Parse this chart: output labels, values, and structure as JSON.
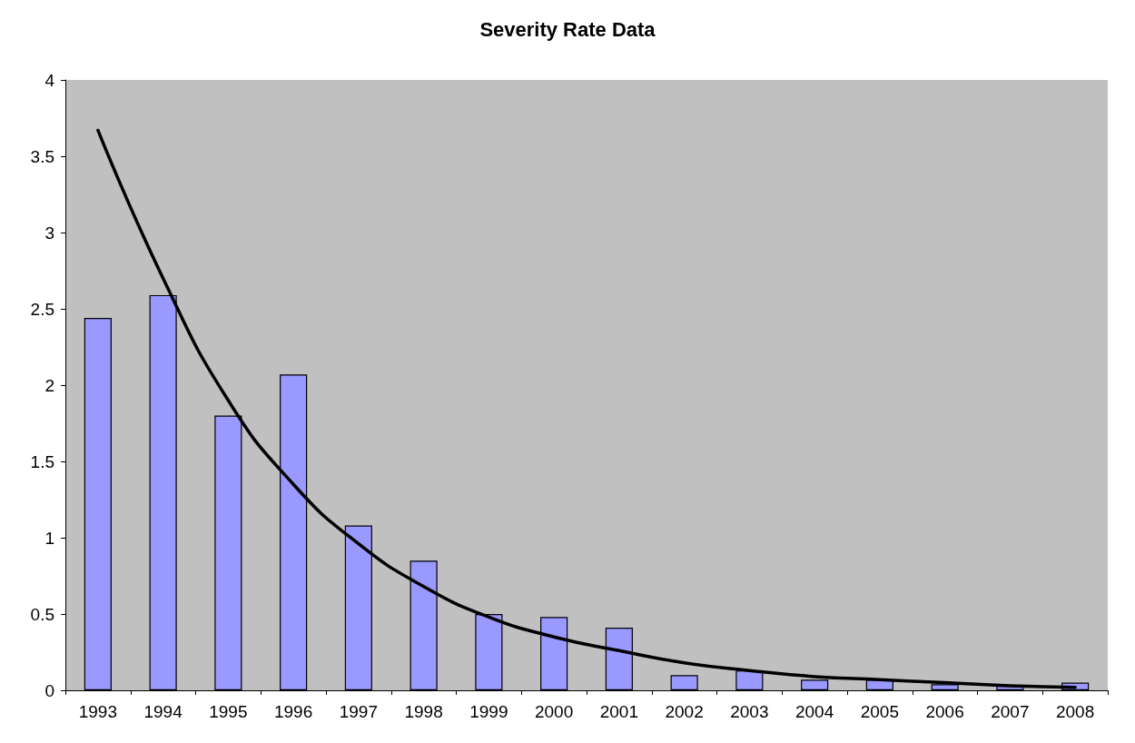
{
  "chart_data": {
    "type": "bar",
    "title": "Severity Rate Data",
    "categories": [
      "1993",
      "1994",
      "1995",
      "1996",
      "1997",
      "1998",
      "1999",
      "2000",
      "2001",
      "2002",
      "2003",
      "2004",
      "2005",
      "2006",
      "2007",
      "2008"
    ],
    "series": [
      {
        "color": "#9999ff",
        "values": [
          2.44,
          2.59,
          1.8,
          2.07,
          1.08,
          0.85,
          0.5,
          0.48,
          0.41,
          0.1,
          0.13,
          0.07,
          0.07,
          0.04,
          0.03,
          0.05
        ]
      },
      {
        "type": "line",
        "color": "#000000",
        "values": [
          3.67,
          2.7,
          1.9,
          1.35,
          0.96,
          0.68,
          0.48,
          0.35,
          0.26,
          0.18,
          0.13,
          0.09,
          0.07,
          0.05,
          0.03,
          0.02
        ]
      }
    ],
    "ylim": [
      0,
      4
    ],
    "yticks": [
      0,
      0.5,
      1,
      1.5,
      2,
      2.5,
      3,
      3.5,
      4
    ],
    "grid": false,
    "marker": "none",
    "line_style": "solid"
  }
}
